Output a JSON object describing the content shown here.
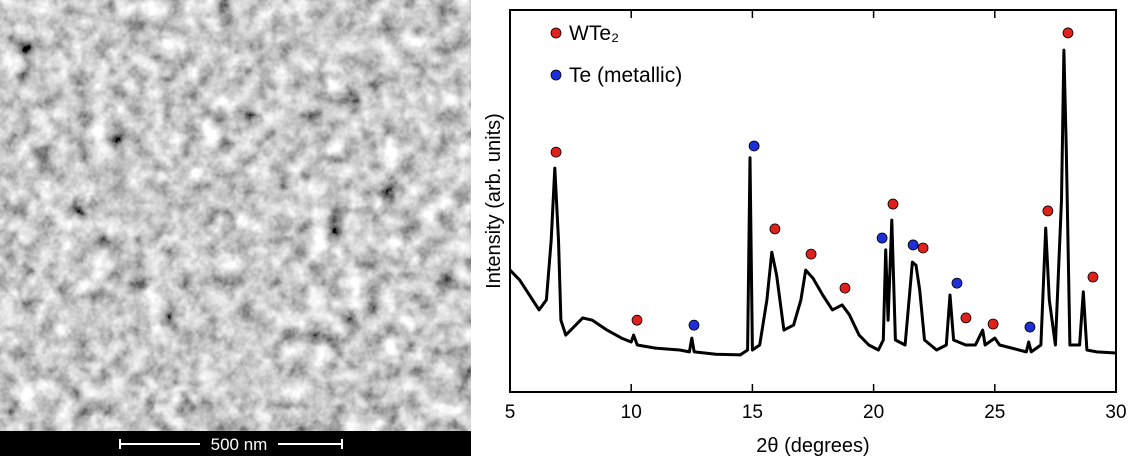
{
  "image": {
    "scale_bar": "500 nm"
  },
  "chart_data": {
    "type": "line",
    "xlabel": "2θ (degrees)",
    "ylabel": "Intensity (arb. units)",
    "color": "#000000",
    "x": [
      5.0,
      5.4,
      5.8,
      6.2,
      6.5,
      6.7,
      6.85,
      7.0,
      7.1,
      7.3,
      7.6,
      8.0,
      8.4,
      9.0,
      9.6,
      10.0,
      10.1,
      10.25,
      11.0,
      12.0,
      12.4,
      12.5,
      12.6,
      13.5,
      14.5,
      14.8,
      14.9,
      15.0,
      15.3,
      15.6,
      15.8,
      16.0,
      16.3,
      16.7,
      17.0,
      17.2,
      17.5,
      17.9,
      18.3,
      18.7,
      19.0,
      19.4,
      19.8,
      20.2,
      20.4,
      20.5,
      20.6,
      20.75,
      20.9,
      21.3,
      21.6,
      21.75,
      21.9,
      22.1,
      22.6,
      23.0,
      23.15,
      23.3,
      23.8,
      24.2,
      24.5,
      24.6,
      25.0,
      25.2,
      26.0,
      26.3,
      26.4,
      26.5,
      26.9,
      27.1,
      27.25,
      27.5,
      27.75,
      27.85,
      27.95,
      28.1,
      28.5,
      28.65,
      28.8,
      29.2,
      30.0
    ],
    "values": [
      31.9,
      29.3,
      25.4,
      21.5,
      24.1,
      39.8,
      58.6,
      39.8,
      18.8,
      14.9,
      16.8,
      19.4,
      18.8,
      16.2,
      14.1,
      13.1,
      14.9,
      12.3,
      11.5,
      11.0,
      10.5,
      14.1,
      10.5,
      9.9,
      9.7,
      11.0,
      61.3,
      11.0,
      12.3,
      24.1,
      36.6,
      30.6,
      16.2,
      17.5,
      24.1,
      31.9,
      29.8,
      25.4,
      21.5,
      22.8,
      20.2,
      14.9,
      12.3,
      11.0,
      13.6,
      37.2,
      18.8,
      45.0,
      13.6,
      12.3,
      34.0,
      33.2,
      26.7,
      13.6,
      11.0,
      12.3,
      25.4,
      13.6,
      12.3,
      12.3,
      16.2,
      12.3,
      14.1,
      12.3,
      11.0,
      10.5,
      13.1,
      10.5,
      12.3,
      42.9,
      24.1,
      12.3,
      50.3,
      89.5,
      63.4,
      12.3,
      12.3,
      26.2,
      11.0,
      10.5,
      10.2
    ],
    "markers": [
      {
        "name": "WTe₂",
        "color": "#e0201b",
        "x": [
          6.9,
          10.24,
          15.93,
          17.42,
          18.82,
          20.8,
          22.04,
          23.81,
          24.93,
          27.19,
          28.02,
          29.05
        ],
        "values": [
          62.8,
          18.8,
          42.7,
          36.1,
          27.2,
          49.2,
          37.7,
          19.4,
          17.8,
          47.4,
          94.0,
          30.1
        ]
      },
      {
        "name": "Te (metallic)",
        "color": "#1f2fd8",
        "x": [
          12.59,
          15.07,
          20.35,
          21.63,
          23.44,
          26.45
        ],
        "values": [
          17.5,
          64.4,
          40.3,
          38.5,
          28.5,
          17.0
        ]
      }
    ],
    "legend": "upper left",
    "xlim": [
      5,
      30
    ],
    "ylim": [
      0,
      100
    ],
    "xticks": [
      5,
      10,
      15,
      20,
      25,
      30
    ]
  }
}
